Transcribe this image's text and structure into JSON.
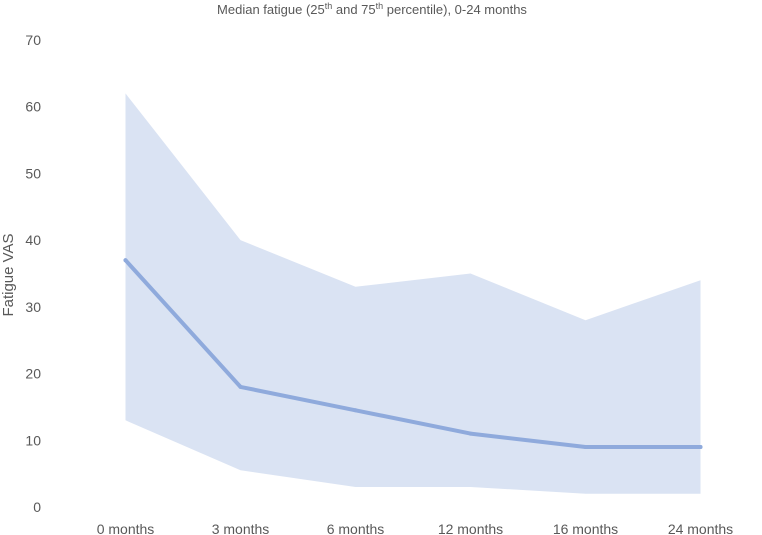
{
  "chart_data": {
    "type": "area",
    "title": {
      "part1": "Median fatigue (25",
      "sup1": "th",
      "part2": " and 75",
      "sup2": "th",
      "part3": " percentile), 0-24 months"
    },
    "xlabel": "",
    "ylabel": "Fatigue VAS",
    "categories": [
      "0 months",
      "3 months",
      "6 months",
      "12 months",
      "16 months",
      "24 months"
    ],
    "ylim": [
      0,
      70
    ],
    "yticks": [
      0,
      10,
      20,
      30,
      40,
      50,
      60,
      70
    ],
    "grid": false,
    "series": [
      {
        "role": "median",
        "values": [
          37,
          18,
          14.5,
          11,
          9,
          9
        ]
      },
      {
        "role": "p25",
        "values": [
          13,
          5.5,
          3,
          3,
          2,
          2
        ]
      },
      {
        "role": "p75",
        "values": [
          62,
          40,
          33,
          35,
          28,
          34
        ]
      }
    ],
    "colors": {
      "line": "#8faadc",
      "band": "#dae3f3",
      "text": "#595959"
    }
  }
}
